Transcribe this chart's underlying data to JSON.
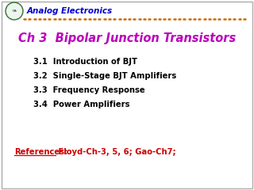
{
  "background_color": "#ffffff",
  "border_color": "#aaaaaa",
  "header_text": "Analog Electronics",
  "header_color": "#0000cc",
  "header_fontsize": 7.5,
  "title": "Ch 3  Bipolar Junction Transistors",
  "title_color": "#bb00bb",
  "title_fontsize": 10.5,
  "items": [
    "3.1  Introduction of BJT",
    "3.2  Single-Stage BJT Amplifiers",
    "3.3  Frequency Response",
    "3.4  Power Amplifiers"
  ],
  "items_color": "#000000",
  "items_fontsize": 7.2,
  "ref_label": "References:",
  "ref_label_color": "#cc0000",
  "ref_text": " Floyd-Ch-3, 5, 6; Gao-Ch7;",
  "ref_text_color": "#cc0000",
  "ref_fontsize": 7.2,
  "divider_color": "#cc6600",
  "logo_circle_color": "#3a7a3a",
  "logo_bg": "#eef4ee",
  "logo_inner_color": "#ffffff"
}
